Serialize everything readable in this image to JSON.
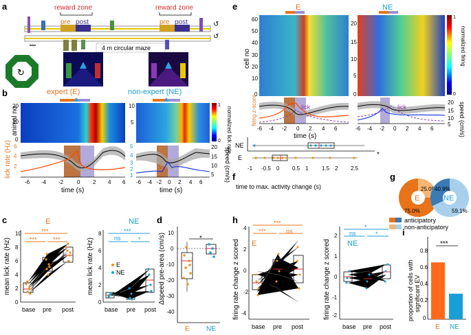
{
  "panels": {
    "a": "a",
    "b": "b",
    "c": "c",
    "d": "d",
    "e": "e",
    "f": "f",
    "g": "g",
    "h": "h",
    "i": "i"
  },
  "panel_a": {
    "reward_zone": "reward zone",
    "pre": "pre",
    "post": "post",
    "caption": "4 m circular maze",
    "loop_glyph": "↺",
    "rotation_glyph": "↻"
  },
  "panel_b": {
    "title_e": "expert (E)",
    "title_ne": "non-expert (NE)",
    "cbar_max": "1",
    "cbar_min": "0",
    "cbar_label": "normalized lick rate",
    "ylabel_heatmap": "animal no",
    "hm_ticks_e": [
      "20",
      "10",
      "0"
    ],
    "hm_ticks_ne": [
      "10",
      "5"
    ],
    "lick_ticks": [
      "6",
      "4",
      "2"
    ],
    "lick_ticks_ne": [
      "5",
      "4",
      "3",
      "2",
      "1"
    ],
    "speed_ticks": [
      "20",
      "15",
      "10",
      "5"
    ],
    "ylabel_lick": "lick rate (Hz)",
    "ylabel_speed": "speed (cm/s)",
    "xticks": [
      "-6",
      "-4",
      "-2",
      "0",
      "2",
      "4",
      "6"
    ],
    "xlabel": "time (s)"
  },
  "panel_c": {
    "title_e": "E",
    "title_ne": "NE",
    "sig_e": [
      "***",
      "***",
      "***"
    ],
    "sig_ne": [
      "***",
      "ns",
      "*"
    ],
    "yticks": [
      "10",
      "8",
      "6",
      "4",
      "2",
      "0"
    ],
    "yticks_ne": [
      "8",
      "6",
      "4",
      "2",
      "0"
    ],
    "ylabel": "mean lick rate (Hz)",
    "legend": [
      "E",
      "NE"
    ],
    "xticks": [
      "base",
      "pre",
      "post"
    ]
  },
  "panel_d": {
    "sig": "*",
    "yticks": [
      "10",
      "0",
      "-10",
      "-20",
      "-30",
      "-40"
    ],
    "ylabel": "Δspeed pre-area (cm/s)",
    "xticks": [
      "E",
      "NE"
    ]
  },
  "panel_e": {
    "title_e": "E",
    "title_ne": "NE",
    "cbar_max": "1",
    "cbar_min": "0",
    "cbar_label": "normalized firing",
    "ylabel": "cell no",
    "yticks_e": [
      "60",
      "50",
      "40",
      "30",
      "20",
      "10",
      "0"
    ],
    "yticks_ne": [
      "20",
      "15",
      "10",
      "5",
      "0"
    ],
    "lick_label": "lick",
    "ylabel_firing": "firing z-score",
    "speed_ticks": [
      "20",
      "15",
      "10",
      "5"
    ],
    "ylabel_speed": "speed (cm/s)",
    "xticks": [
      "-6",
      "-4",
      "-2",
      "0",
      "2",
      "4",
      "6"
    ],
    "xlabel": "time (s)"
  },
  "panel_f": {
    "groups": [
      "NE",
      "E"
    ],
    "sig": "*",
    "xticks": [
      "-1",
      "-0.5",
      "0",
      "0.5",
      "1",
      "1.5",
      "2",
      "2.5"
    ],
    "xlabel": "time to max. activity change (s)"
  },
  "panel_g": {
    "pies": [
      {
        "label": "E",
        "anticipatory": "75.0%",
        "non_anticipatory": "25.0%"
      },
      {
        "label": "NE",
        "anticipatory": "40.9%",
        "non_anticipatory": "59.1%"
      }
    ],
    "legend": [
      "anticipatory",
      "non-anticipatory"
    ]
  },
  "panel_h": {
    "title_e": "E",
    "title_ne": "NE",
    "sig_e": [
      "***",
      "***",
      "ns"
    ],
    "sig_ne": [
      "*",
      "ns",
      "*"
    ],
    "yticks": [
      "4",
      "2",
      "0",
      "-2",
      "-4"
    ],
    "yticks_ne": [
      "2",
      "1",
      "0",
      "-1",
      "-2"
    ],
    "ylabel": "firing rate change z scored",
    "xticks": [
      "base",
      "pre",
      "post"
    ]
  },
  "panel_i": {
    "sig": "***",
    "yticks": [
      "0.8",
      "0.6",
      "0.4",
      "0.2",
      "0"
    ],
    "ylabel_1": "proportion of cells with",
    "ylabel_2": "significant EV",
    "categories": [
      "E",
      "NE"
    ]
  },
  "chart_data": [
    {
      "type": "bar",
      "title": "proportion of cells with significant EV",
      "categories": [
        "E",
        "NE"
      ],
      "values": [
        0.69,
        0.31
      ],
      "ylabel": "proportion of cells with significant EV",
      "ylim": [
        0,
        0.8
      ]
    },
    {
      "type": "pie",
      "title": "E",
      "labels": [
        "anticipatory",
        "non-anticipatory"
      ],
      "values": [
        75.0,
        25.0
      ]
    },
    {
      "type": "pie",
      "title": "NE",
      "labels": [
        "anticipatory",
        "non-anticipatory"
      ],
      "values": [
        40.9,
        59.1
      ]
    }
  ]
}
